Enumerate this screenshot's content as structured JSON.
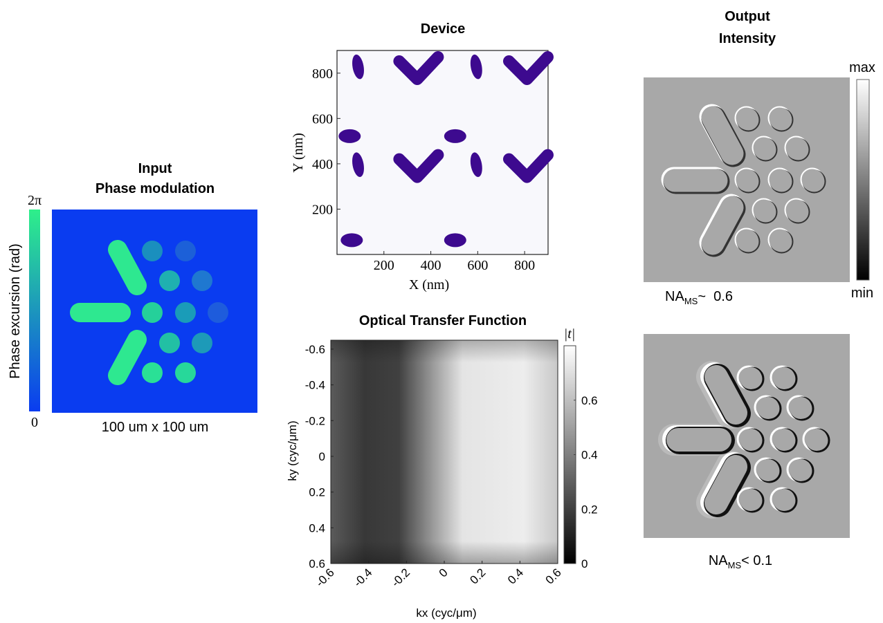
{
  "input_panel": {
    "title_lines": [
      "Input",
      "Phase modulation"
    ],
    "colorbar_label": "Phase excursion (rad)",
    "colorbar_max": "2π",
    "colorbar_min": "0",
    "caption": "100 um x 100 um"
  },
  "device_panel": {
    "title": "Device",
    "xlabel": "X (nm)",
    "ylabel": "Y (nm)",
    "xlim": [
      0,
      900
    ],
    "ylim": [
      0,
      900
    ],
    "xticks": [
      200,
      400,
      600,
      800
    ],
    "yticks": [
      200,
      400,
      600,
      800
    ]
  },
  "otf_panel": {
    "title": "Optical Transfer Function",
    "xlabel": "kx (cyc/μm)",
    "ylabel": "ky (cyc/μm)",
    "xlim": [
      -0.6,
      0.6
    ],
    "ylim": [
      -0.65,
      0.6
    ],
    "xticks": [
      -0.6,
      -0.4,
      -0.2,
      0,
      0.2,
      0.4,
      0.6
    ],
    "yticks": [
      -0.6,
      -0.4,
      -0.2,
      0,
      0.2,
      0.4,
      0.6
    ],
    "colorbar_label": "|t|",
    "clim": [
      0,
      0.8
    ],
    "cticks": [
      0,
      0.2,
      0.4,
      0.6
    ]
  },
  "output_panel": {
    "title_lines": [
      "Output",
      "Intensity"
    ],
    "colorbar_max": "max",
    "colorbar_min": "min",
    "captions": [
      {
        "symbol": "NA",
        "subscript": "MS",
        "relation": "~  0.6"
      },
      {
        "symbol": "NA",
        "subscript": "MS",
        "relation": "< 0.1"
      }
    ]
  }
}
